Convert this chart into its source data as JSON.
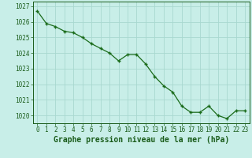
{
  "x": [
    0,
    1,
    2,
    3,
    4,
    5,
    6,
    7,
    8,
    9,
    10,
    11,
    12,
    13,
    14,
    15,
    16,
    17,
    18,
    19,
    20,
    21,
    22,
    23
  ],
  "y": [
    1026.7,
    1025.9,
    1025.7,
    1025.4,
    1025.3,
    1025.0,
    1024.6,
    1024.3,
    1024.0,
    1023.5,
    1023.9,
    1023.9,
    1023.3,
    1022.5,
    1021.9,
    1021.5,
    1020.6,
    1020.2,
    1020.2,
    1020.6,
    1020.0,
    1019.8,
    1020.3,
    1020.3
  ],
  "line_color": "#1a6b1a",
  "marker": "+",
  "bg_color": "#c8eee8",
  "grid_color": "#a8d8d0",
  "xlabel": "Graphe pression niveau de la mer (hPa)",
  "xlabel_color": "#1a5c1a",
  "tick_color": "#1a5c1a",
  "ylim_min": 1019.5,
  "ylim_max": 1027.3,
  "yticks": [
    1020,
    1021,
    1022,
    1023,
    1024,
    1025,
    1026,
    1027
  ],
  "xticks": [
    0,
    1,
    2,
    3,
    4,
    5,
    6,
    7,
    8,
    9,
    10,
    11,
    12,
    13,
    14,
    15,
    16,
    17,
    18,
    19,
    20,
    21,
    22,
    23
  ],
  "tick_fontsize": 5.5,
  "xlabel_fontsize": 7.0,
  "linewidth": 0.9,
  "markersize": 3.5,
  "markeredgewidth": 1.0
}
